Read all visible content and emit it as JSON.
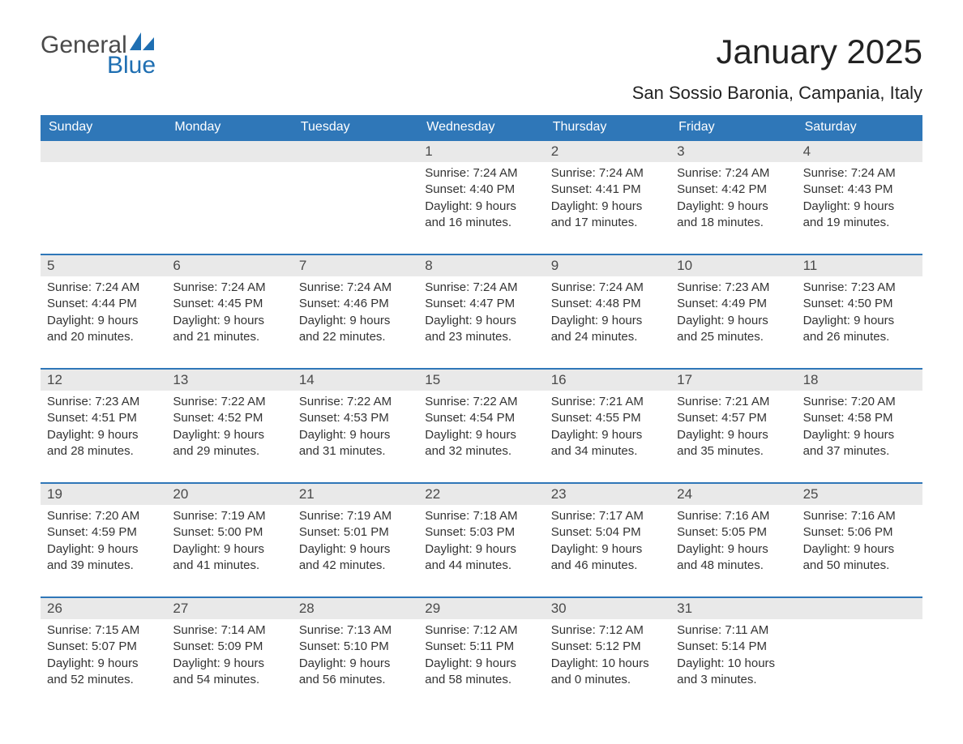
{
  "logo": {
    "line1": "General",
    "line2": "Blue",
    "sail_color": "#1f6fb2",
    "text_color": "#4a4a4a"
  },
  "title": "January 2025",
  "location": "San Sossio Baronia, Campania, Italy",
  "colors": {
    "header_bg": "#2f77b8",
    "header_text": "#ffffff",
    "numrow_bg": "#e9e9e9",
    "week_border": "#2f77b8",
    "body_text": "#333333",
    "background": "#ffffff"
  },
  "typography": {
    "title_fontsize": 42,
    "location_fontsize": 22,
    "dayname_fontsize": 16,
    "daynum_fontsize": 17,
    "cell_fontsize": 15,
    "font_family": "Segoe UI"
  },
  "layout": {
    "columns": 7,
    "aspect_w": 1188,
    "aspect_h": 918
  },
  "daynames": [
    "Sunday",
    "Monday",
    "Tuesday",
    "Wednesday",
    "Thursday",
    "Friday",
    "Saturday"
  ],
  "weeks": [
    [
      {
        "num": "",
        "lines": []
      },
      {
        "num": "",
        "lines": []
      },
      {
        "num": "",
        "lines": []
      },
      {
        "num": "1",
        "lines": [
          "Sunrise: 7:24 AM",
          "Sunset: 4:40 PM",
          "Daylight: 9 hours",
          "and 16 minutes."
        ]
      },
      {
        "num": "2",
        "lines": [
          "Sunrise: 7:24 AM",
          "Sunset: 4:41 PM",
          "Daylight: 9 hours",
          "and 17 minutes."
        ]
      },
      {
        "num": "3",
        "lines": [
          "Sunrise: 7:24 AM",
          "Sunset: 4:42 PM",
          "Daylight: 9 hours",
          "and 18 minutes."
        ]
      },
      {
        "num": "4",
        "lines": [
          "Sunrise: 7:24 AM",
          "Sunset: 4:43 PM",
          "Daylight: 9 hours",
          "and 19 minutes."
        ]
      }
    ],
    [
      {
        "num": "5",
        "lines": [
          "Sunrise: 7:24 AM",
          "Sunset: 4:44 PM",
          "Daylight: 9 hours",
          "and 20 minutes."
        ]
      },
      {
        "num": "6",
        "lines": [
          "Sunrise: 7:24 AM",
          "Sunset: 4:45 PM",
          "Daylight: 9 hours",
          "and 21 minutes."
        ]
      },
      {
        "num": "7",
        "lines": [
          "Sunrise: 7:24 AM",
          "Sunset: 4:46 PM",
          "Daylight: 9 hours",
          "and 22 minutes."
        ]
      },
      {
        "num": "8",
        "lines": [
          "Sunrise: 7:24 AM",
          "Sunset: 4:47 PM",
          "Daylight: 9 hours",
          "and 23 minutes."
        ]
      },
      {
        "num": "9",
        "lines": [
          "Sunrise: 7:24 AM",
          "Sunset: 4:48 PM",
          "Daylight: 9 hours",
          "and 24 minutes."
        ]
      },
      {
        "num": "10",
        "lines": [
          "Sunrise: 7:23 AM",
          "Sunset: 4:49 PM",
          "Daylight: 9 hours",
          "and 25 minutes."
        ]
      },
      {
        "num": "11",
        "lines": [
          "Sunrise: 7:23 AM",
          "Sunset: 4:50 PM",
          "Daylight: 9 hours",
          "and 26 minutes."
        ]
      }
    ],
    [
      {
        "num": "12",
        "lines": [
          "Sunrise: 7:23 AM",
          "Sunset: 4:51 PM",
          "Daylight: 9 hours",
          "and 28 minutes."
        ]
      },
      {
        "num": "13",
        "lines": [
          "Sunrise: 7:22 AM",
          "Sunset: 4:52 PM",
          "Daylight: 9 hours",
          "and 29 minutes."
        ]
      },
      {
        "num": "14",
        "lines": [
          "Sunrise: 7:22 AM",
          "Sunset: 4:53 PM",
          "Daylight: 9 hours",
          "and 31 minutes."
        ]
      },
      {
        "num": "15",
        "lines": [
          "Sunrise: 7:22 AM",
          "Sunset: 4:54 PM",
          "Daylight: 9 hours",
          "and 32 minutes."
        ]
      },
      {
        "num": "16",
        "lines": [
          "Sunrise: 7:21 AM",
          "Sunset: 4:55 PM",
          "Daylight: 9 hours",
          "and 34 minutes."
        ]
      },
      {
        "num": "17",
        "lines": [
          "Sunrise: 7:21 AM",
          "Sunset: 4:57 PM",
          "Daylight: 9 hours",
          "and 35 minutes."
        ]
      },
      {
        "num": "18",
        "lines": [
          "Sunrise: 7:20 AM",
          "Sunset: 4:58 PM",
          "Daylight: 9 hours",
          "and 37 minutes."
        ]
      }
    ],
    [
      {
        "num": "19",
        "lines": [
          "Sunrise: 7:20 AM",
          "Sunset: 4:59 PM",
          "Daylight: 9 hours",
          "and 39 minutes."
        ]
      },
      {
        "num": "20",
        "lines": [
          "Sunrise: 7:19 AM",
          "Sunset: 5:00 PM",
          "Daylight: 9 hours",
          "and 41 minutes."
        ]
      },
      {
        "num": "21",
        "lines": [
          "Sunrise: 7:19 AM",
          "Sunset: 5:01 PM",
          "Daylight: 9 hours",
          "and 42 minutes."
        ]
      },
      {
        "num": "22",
        "lines": [
          "Sunrise: 7:18 AM",
          "Sunset: 5:03 PM",
          "Daylight: 9 hours",
          "and 44 minutes."
        ]
      },
      {
        "num": "23",
        "lines": [
          "Sunrise: 7:17 AM",
          "Sunset: 5:04 PM",
          "Daylight: 9 hours",
          "and 46 minutes."
        ]
      },
      {
        "num": "24",
        "lines": [
          "Sunrise: 7:16 AM",
          "Sunset: 5:05 PM",
          "Daylight: 9 hours",
          "and 48 minutes."
        ]
      },
      {
        "num": "25",
        "lines": [
          "Sunrise: 7:16 AM",
          "Sunset: 5:06 PM",
          "Daylight: 9 hours",
          "and 50 minutes."
        ]
      }
    ],
    [
      {
        "num": "26",
        "lines": [
          "Sunrise: 7:15 AM",
          "Sunset: 5:07 PM",
          "Daylight: 9 hours",
          "and 52 minutes."
        ]
      },
      {
        "num": "27",
        "lines": [
          "Sunrise: 7:14 AM",
          "Sunset: 5:09 PM",
          "Daylight: 9 hours",
          "and 54 minutes."
        ]
      },
      {
        "num": "28",
        "lines": [
          "Sunrise: 7:13 AM",
          "Sunset: 5:10 PM",
          "Daylight: 9 hours",
          "and 56 minutes."
        ]
      },
      {
        "num": "29",
        "lines": [
          "Sunrise: 7:12 AM",
          "Sunset: 5:11 PM",
          "Daylight: 9 hours",
          "and 58 minutes."
        ]
      },
      {
        "num": "30",
        "lines": [
          "Sunrise: 7:12 AM",
          "Sunset: 5:12 PM",
          "Daylight: 10 hours",
          "and 0 minutes."
        ]
      },
      {
        "num": "31",
        "lines": [
          "Sunrise: 7:11 AM",
          "Sunset: 5:14 PM",
          "Daylight: 10 hours",
          "and 3 minutes."
        ]
      },
      {
        "num": "",
        "lines": []
      }
    ]
  ]
}
